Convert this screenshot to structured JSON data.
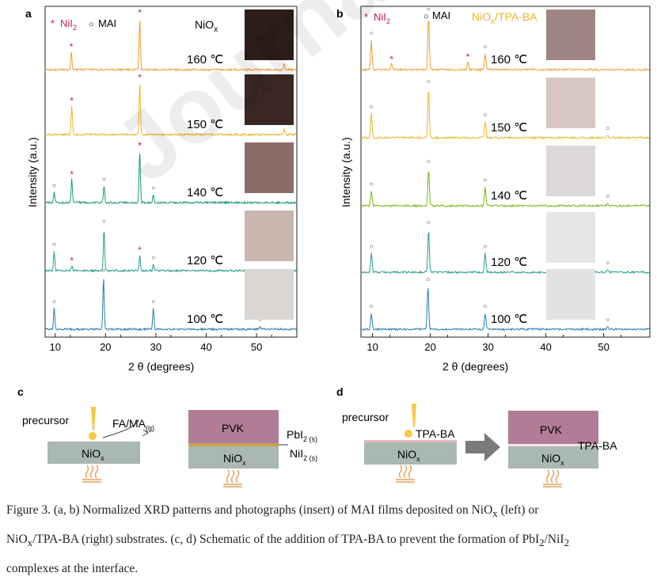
{
  "panels": {
    "a_label": "a",
    "b_label": "b",
    "c_label": "c",
    "d_label": "d"
  },
  "watermark": "Journal Pre-proof",
  "colors": {
    "nii2_star": "#c2185b",
    "orange": "#f39c34",
    "gold": "#f0b429",
    "green": "#1e9a6c",
    "teal": "#2a9d8f",
    "blue": "#2c7bb6",
    "lime": "#7cb518",
    "tpa_label": "#f0b429",
    "pvk": "#b07c96",
    "niox": "#a9b8b0",
    "heater": "#e8a15d"
  },
  "chart_data": [
    {
      "type": "line",
      "panel": "a",
      "xlabel": "2 θ (degrees)",
      "ylabel": "Intensity (a.u.)",
      "xlim": [
        8,
        58
      ],
      "xticks": [
        10,
        20,
        30,
        40,
        50
      ],
      "legend": {
        "star": "*",
        "star_label": "NiI",
        "star_sub": "2",
        "circle": "○",
        "circle_label": "MAI"
      },
      "substrate_label": "NiO",
      "substrate_sub": "x",
      "series": [
        {
          "name": "160 ℃",
          "color": "#f39c34",
          "peaks": [
            [
              13.2,
              0.35,
              "star"
            ],
            [
              26.8,
              1.0,
              "star"
            ],
            [
              55.5,
              0.12,
              "star"
            ]
          ],
          "photo": "#2d1c18"
        },
        {
          "name": "150 ℃",
          "color": "#f0b429",
          "peaks": [
            [
              13.3,
              0.55,
              "star"
            ],
            [
              26.8,
              1.0,
              "star"
            ],
            [
              55.5,
              0.12,
              "star"
            ]
          ],
          "photo": "#3a2722"
        },
        {
          "name": "140 ℃",
          "color": "#1e9a6c",
          "peaks": [
            [
              9.8,
              0.2,
              "circle"
            ],
            [
              13.3,
              0.45,
              "star"
            ],
            [
              19.7,
              0.32,
              "circle"
            ],
            [
              26.8,
              1.0,
              "star"
            ],
            [
              29.5,
              0.15,
              "circle"
            ]
          ],
          "photo": "#8e6c66"
        },
        {
          "name": "120 ℃",
          "color": "#2a9d8f",
          "peaks": [
            [
              9.8,
              0.38,
              "circle"
            ],
            [
              13.3,
              0.1,
              "star"
            ],
            [
              19.7,
              0.82,
              "circle"
            ],
            [
              26.8,
              0.3,
              "star"
            ],
            [
              29.5,
              0.12,
              "circle"
            ]
          ],
          "photo": "#c9b6ad"
        },
        {
          "name": "100 ℃",
          "color": "#2c7bb6",
          "peaks": [
            [
              9.8,
              0.4,
              "circle"
            ],
            [
              19.6,
              1.0,
              "circle"
            ],
            [
              29.5,
              0.4,
              "circle"
            ],
            [
              50.7,
              0.05,
              "circle"
            ]
          ],
          "photo": "#d9d6d4"
        }
      ]
    },
    {
      "type": "line",
      "panel": "b",
      "xlabel": "2 θ (degrees)",
      "ylabel": "Intensity (a.u.)",
      "xlim": [
        8,
        58
      ],
      "xticks": [
        10,
        20,
        30,
        40,
        50
      ],
      "legend": {
        "star": "*",
        "star_label": "NiI",
        "star_sub": "2",
        "circle": "○",
        "circle_label": "MAI"
      },
      "substrate_label": "NiO",
      "substrate_sub": "x",
      "substrate_suffix": "/TPA-BA",
      "series": [
        {
          "name": "160 ℃",
          "color": "#f39c34",
          "peaks": [
            [
              9.8,
              0.55,
              "circle"
            ],
            [
              13.3,
              0.1,
              "star"
            ],
            [
              19.7,
              1.0,
              "circle"
            ],
            [
              26.5,
              0.15,
              "star"
            ],
            [
              29.5,
              0.3,
              "circle"
            ]
          ],
          "photo": "#a08682"
        },
        {
          "name": "150 ℃",
          "color": "#f0b429",
          "peaks": [
            [
              9.8,
              0.45,
              "circle"
            ],
            [
              19.7,
              0.92,
              "circle"
            ],
            [
              29.5,
              0.3,
              "circle"
            ],
            [
              50.7,
              0.05,
              "circle"
            ]
          ],
          "photo": "#d8c6c0"
        },
        {
          "name": "140 ℃",
          "color": "#7cb518",
          "peaks": [
            [
              9.8,
              0.28,
              "circle"
            ],
            [
              19.7,
              0.7,
              "circle"
            ],
            [
              29.5,
              0.35,
              "circle"
            ],
            [
              50.7,
              0.05,
              "circle"
            ]
          ],
          "photo": "#dcd8dc"
        },
        {
          "name": "120 ℃",
          "color": "#2a9d8f",
          "peaks": [
            [
              9.8,
              0.35,
              "circle"
            ],
            [
              19.7,
              0.8,
              "circle"
            ],
            [
              29.5,
              0.35,
              "circle"
            ],
            [
              50.7,
              0.05,
              "circle"
            ]
          ],
          "photo": "#e6e6e8"
        },
        {
          "name": "100 ℃",
          "color": "#2c7bb6",
          "peaks": [
            [
              9.8,
              0.3,
              "circle"
            ],
            [
              19.6,
              0.8,
              "circle"
            ],
            [
              29.5,
              0.3,
              "circle"
            ],
            [
              50.7,
              0.05,
              "circle"
            ]
          ],
          "photo": "#e2e2e4"
        }
      ]
    }
  ],
  "schematic_c": {
    "precursor": "precursor",
    "gas": "FA/MA",
    "gas_sub": "(g)",
    "niox": "NiO",
    "niox_sub": "x",
    "pvk": "PVK",
    "pbi2": "PbI",
    "pbi2_sub": "2 (s)",
    "nii2": "NiI",
    "nii2_sub": "2 (s)"
  },
  "schematic_d": {
    "precursor": "precursor",
    "tpa": "TPA-BA",
    "niox": "NiO",
    "niox_sub": "x",
    "pvk": "PVK",
    "tpa2": "TPA-BA"
  },
  "caption": {
    "line1_pre": "Figure 3. (a, b) Normalized XRD patterns and photographs (insert) of MAI films deposited on NiO",
    "line1_sub": "x",
    "line1_post": " (left) or",
    "line2_pre": "NiO",
    "line2_sub": "x",
    "line2_mid": "/TPA-BA (right) substrates. (c, d) Schematic of the addition of TPA-BA to prevent the formation of PbI",
    "line2_sub2": "2",
    "line2_mid2": "/NiI",
    "line2_sub3": "2",
    "line3": "complexes at the interface."
  }
}
